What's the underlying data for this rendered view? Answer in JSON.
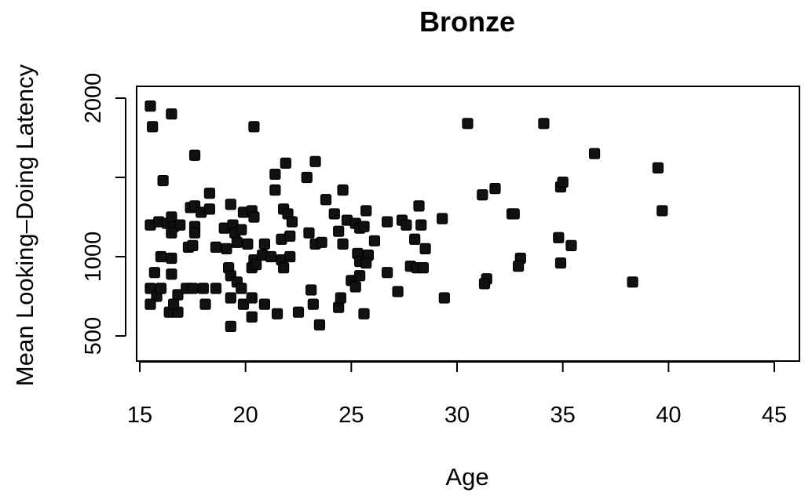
{
  "chart_data": {
    "type": "scatter",
    "title": "Bronze",
    "xlabel": "Age",
    "ylabel": "Mean Looking–Doing Latency",
    "xlim": [
      15,
      45
    ],
    "ylim": [
      0,
      2000
    ],
    "xticks": [
      "15",
      "20",
      "25",
      "30",
      "35",
      "40",
      "45"
    ],
    "yticks": [
      "500",
      "1000",
      "2000"
    ],
    "grid": false,
    "legend": "none",
    "marker_color": "#111111",
    "series": [
      {
        "points": [
          [
            15.5,
            1950
          ],
          [
            15.6,
            1820
          ],
          [
            16.5,
            1900
          ],
          [
            20.4,
            1820
          ],
          [
            30.5,
            1840
          ],
          [
            34.1,
            1840
          ],
          [
            17.6,
            1640
          ],
          [
            16.1,
            1480
          ],
          [
            21.4,
            1520
          ],
          [
            21.9,
            1590
          ],
          [
            22.9,
            1500
          ],
          [
            23.3,
            1600
          ],
          [
            36.5,
            1650
          ],
          [
            39.5,
            1560
          ],
          [
            34.9,
            1440
          ],
          [
            35.0,
            1470
          ],
          [
            31.8,
            1430
          ],
          [
            31.2,
            1390
          ],
          [
            39.7,
            1290
          ],
          [
            32.6,
            1270
          ],
          [
            32.7,
            1270
          ],
          [
            15.5,
            1200
          ],
          [
            15.9,
            1220
          ],
          [
            16.3,
            1210
          ],
          [
            16.5,
            1250
          ],
          [
            16.6,
            1190
          ],
          [
            16.9,
            1200
          ],
          [
            17.4,
            1310
          ],
          [
            17.6,
            1320
          ],
          [
            17.9,
            1280
          ],
          [
            18.3,
            1300
          ],
          [
            18.3,
            1400
          ],
          [
            19.3,
            1330
          ],
          [
            19.9,
            1280
          ],
          [
            20.3,
            1290
          ],
          [
            20.4,
            1250
          ],
          [
            21.4,
            1420
          ],
          [
            21.8,
            1300
          ],
          [
            22.0,
            1270
          ],
          [
            22.2,
            1220
          ],
          [
            23.8,
            1360
          ],
          [
            24.2,
            1270
          ],
          [
            24.6,
            1420
          ],
          [
            24.8,
            1230
          ],
          [
            25.2,
            1210
          ],
          [
            25.7,
            1290
          ],
          [
            26.7,
            1220
          ],
          [
            27.4,
            1230
          ],
          [
            27.6,
            1200
          ],
          [
            28.2,
            1320
          ],
          [
            28.3,
            1200
          ],
          [
            29.3,
            1240
          ],
          [
            16.5,
            1150
          ],
          [
            17.6,
            1190
          ],
          [
            17.6,
            1150
          ],
          [
            19.0,
            1180
          ],
          [
            19.4,
            1200
          ],
          [
            19.5,
            1150
          ],
          [
            19.8,
            1170
          ],
          [
            20.9,
            1080
          ],
          [
            21.7,
            1110
          ],
          [
            22.1,
            1130
          ],
          [
            23.0,
            1150
          ],
          [
            23.3,
            1080
          ],
          [
            23.6,
            1090
          ],
          [
            24.4,
            1160
          ],
          [
            25.4,
            1180
          ],
          [
            25.6,
            1190
          ],
          [
            26.1,
            1100
          ],
          [
            28.0,
            1110
          ],
          [
            34.8,
            1120
          ],
          [
            35.4,
            1070
          ],
          [
            16.0,
            1000
          ],
          [
            16.5,
            990
          ],
          [
            17.3,
            1060
          ],
          [
            17.5,
            1070
          ],
          [
            18.6,
            1060
          ],
          [
            19.1,
            1050
          ],
          [
            19.6,
            1090
          ],
          [
            20.1,
            1080
          ],
          [
            20.4,
            980
          ],
          [
            20.8,
            1010
          ],
          [
            21.2,
            1000
          ],
          [
            21.7,
            980
          ],
          [
            22.1,
            1000
          ],
          [
            24.6,
            1080
          ],
          [
            25.3,
            1020
          ],
          [
            25.4,
            970
          ],
          [
            25.8,
            1010
          ],
          [
            28.5,
            1050
          ],
          [
            33.0,
            990
          ],
          [
            34.9,
            960
          ],
          [
            15.5,
            800
          ],
          [
            15.7,
            900
          ],
          [
            15.8,
            750
          ],
          [
            16.0,
            800
          ],
          [
            16.5,
            890
          ],
          [
            16.8,
            760
          ],
          [
            17.2,
            800
          ],
          [
            17.5,
            800
          ],
          [
            18.0,
            800
          ],
          [
            18.6,
            800
          ],
          [
            19.2,
            930
          ],
          [
            19.3,
            880
          ],
          [
            19.6,
            840
          ],
          [
            19.8,
            800
          ],
          [
            20.3,
            930
          ],
          [
            20.5,
            950
          ],
          [
            21.8,
            930
          ],
          [
            23.1,
            790
          ],
          [
            25.0,
            850
          ],
          [
            25.2,
            810
          ],
          [
            25.4,
            880
          ],
          [
            25.7,
            960
          ],
          [
            26.7,
            900
          ],
          [
            27.8,
            940
          ],
          [
            28.1,
            930
          ],
          [
            28.4,
            930
          ],
          [
            29.4,
            740
          ],
          [
            31.4,
            860
          ],
          [
            31.3,
            830
          ],
          [
            32.9,
            940
          ],
          [
            38.3,
            840
          ],
          [
            15.5,
            700
          ],
          [
            16.4,
            650
          ],
          [
            16.8,
            650
          ],
          [
            16.6,
            700
          ],
          [
            18.1,
            700
          ],
          [
            19.3,
            740
          ],
          [
            19.9,
            700
          ],
          [
            20.3,
            740
          ],
          [
            20.9,
            700
          ],
          [
            21.5,
            640
          ],
          [
            22.5,
            650
          ],
          [
            23.2,
            700
          ],
          [
            24.4,
            680
          ],
          [
            24.5,
            740
          ],
          [
            25.6,
            640
          ],
          [
            27.2,
            780
          ],
          [
            19.3,
            560
          ],
          [
            20.3,
            620
          ],
          [
            23.5,
            570
          ]
        ]
      }
    ]
  }
}
